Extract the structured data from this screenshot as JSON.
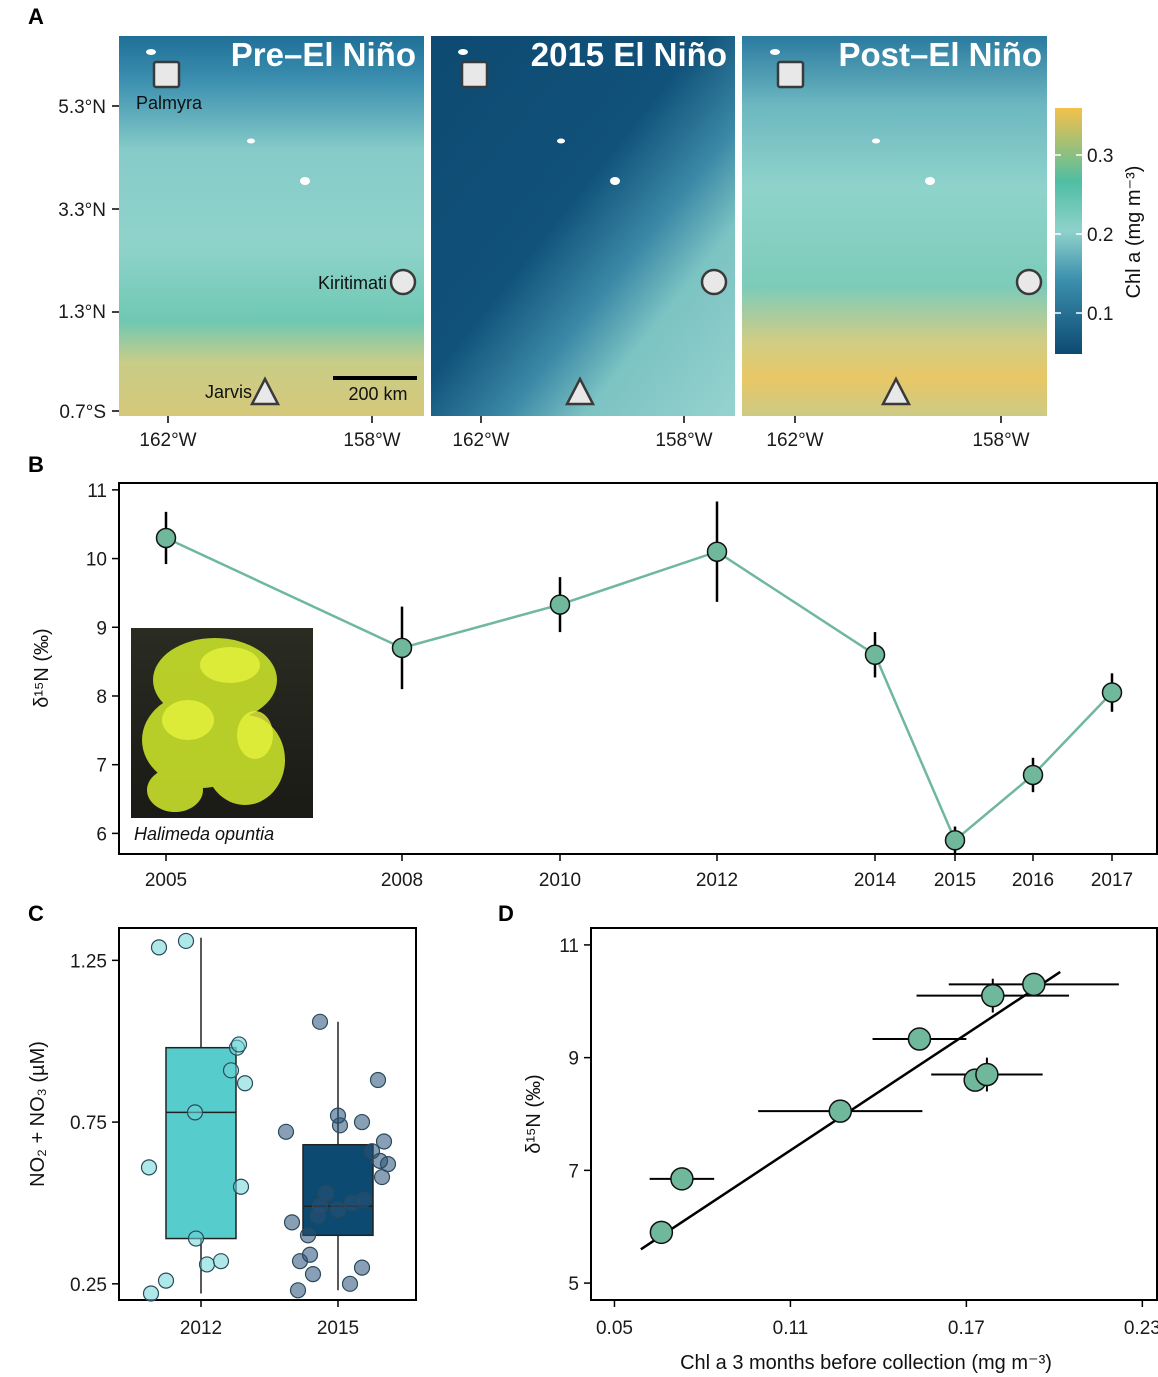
{
  "panels": {
    "a": "A",
    "b": "B",
    "c": "C",
    "d": "D"
  },
  "maps": {
    "titles": [
      "Pre–El Niño",
      "2015 El Niño",
      "Post–El Niño"
    ],
    "lat_ticks": [
      "5.3°N",
      "3.3°N",
      "1.3°N",
      "0.7°S"
    ],
    "lon_ticks": [
      "162°W",
      "158°W"
    ],
    "sites": {
      "palmyra": "Palmyra",
      "kiritimati": "Kiritimati",
      "jarvis": "Jarvis"
    },
    "scale_bar": "200 km",
    "colorbar": {
      "label": "Chl a (mg m⁻³)",
      "ticks": [
        "0.3",
        "0.2",
        "0.1"
      ]
    },
    "colors": {
      "low": "#0e4d73",
      "mid": "#8fd2c8",
      "high": "#f2c14e"
    }
  },
  "inset": {
    "caption": "Halimeda opuntia",
    "icon": "algae-photo"
  },
  "chart_data": [
    {
      "panel": "B",
      "type": "line",
      "x": [
        "2005",
        "2008",
        "2010",
        "2012",
        "2014",
        "2015",
        "2016",
        "2017"
      ],
      "y": [
        10.3,
        8.7,
        9.33,
        10.1,
        8.6,
        5.9,
        6.85,
        8.05
      ],
      "err": [
        0.38,
        0.6,
        0.4,
        0.73,
        0.33,
        0.2,
        0.25,
        0.28
      ],
      "ylabel": "δ¹⁵N (‰)",
      "yticks": [
        "6",
        "7",
        "8",
        "9",
        "10",
        "11"
      ],
      "ylim": [
        5.7,
        11.1
      ],
      "color": "#6fb89c"
    },
    {
      "panel": "C",
      "type": "box",
      "categories": [
        "2012",
        "2015"
      ],
      "ylabel": "NO₂ + NO₃ (µM)",
      "yticks": [
        "0.25",
        "0.75",
        "1.25"
      ],
      "ylim": [
        0.2,
        1.35
      ],
      "boxes": [
        {
          "q1": 0.39,
          "median": 0.78,
          "q3": 0.98,
          "whisker_low": 0.22,
          "whisker_high": 1.32,
          "color": "#56cccd",
          "points": [
            0.22,
            0.26,
            0.31,
            0.32,
            0.39,
            0.55,
            0.61,
            0.78,
            0.87,
            0.91,
            0.98,
            0.99,
            1.29,
            1.31
          ]
        },
        {
          "q1": 0.4,
          "median": 0.49,
          "q3": 0.68,
          "whisker_low": 0.23,
          "whisker_high": 1.06,
          "color": "#0d4a72",
          "points": [
            0.23,
            0.25,
            0.28,
            0.3,
            0.32,
            0.34,
            0.4,
            0.44,
            0.46,
            0.48,
            0.49,
            0.5,
            0.51,
            0.53,
            0.58,
            0.62,
            0.63,
            0.66,
            0.69,
            0.72,
            0.74,
            0.75,
            0.77,
            0.88,
            1.06
          ]
        }
      ]
    },
    {
      "panel": "D",
      "type": "scatter",
      "xlabel": "Chl a 3 months before collection (mg m⁻³)",
      "ylabel": "δ¹⁵N (‰)",
      "xticks": [
        "0.05",
        "0.11",
        "0.17",
        "0.23"
      ],
      "yticks": [
        "5",
        "7",
        "9",
        "11"
      ],
      "xlim": [
        0.042,
        0.235
      ],
      "ylim": [
        4.7,
        11.3
      ],
      "points": [
        {
          "x": 0.066,
          "y": 5.9,
          "xerr": 0
        },
        {
          "x": 0.073,
          "y": 6.85,
          "xerr": 0.011
        },
        {
          "x": 0.127,
          "y": 8.05,
          "xerr": 0.028
        },
        {
          "x": 0.173,
          "y": 8.6,
          "xerr": 0
        },
        {
          "x": 0.177,
          "y": 8.7,
          "xerr": 0.019
        },
        {
          "x": 0.154,
          "y": 9.33,
          "xerr": 0.016
        },
        {
          "x": 0.179,
          "y": 10.1,
          "xerr": 0.026
        },
        {
          "x": 0.193,
          "y": 10.3,
          "xerr": 0.029
        }
      ],
      "fit": {
        "x": [
          0.059,
          0.202
        ],
        "y": [
          5.6,
          10.52
        ]
      },
      "color": "#6fb89c"
    }
  ]
}
